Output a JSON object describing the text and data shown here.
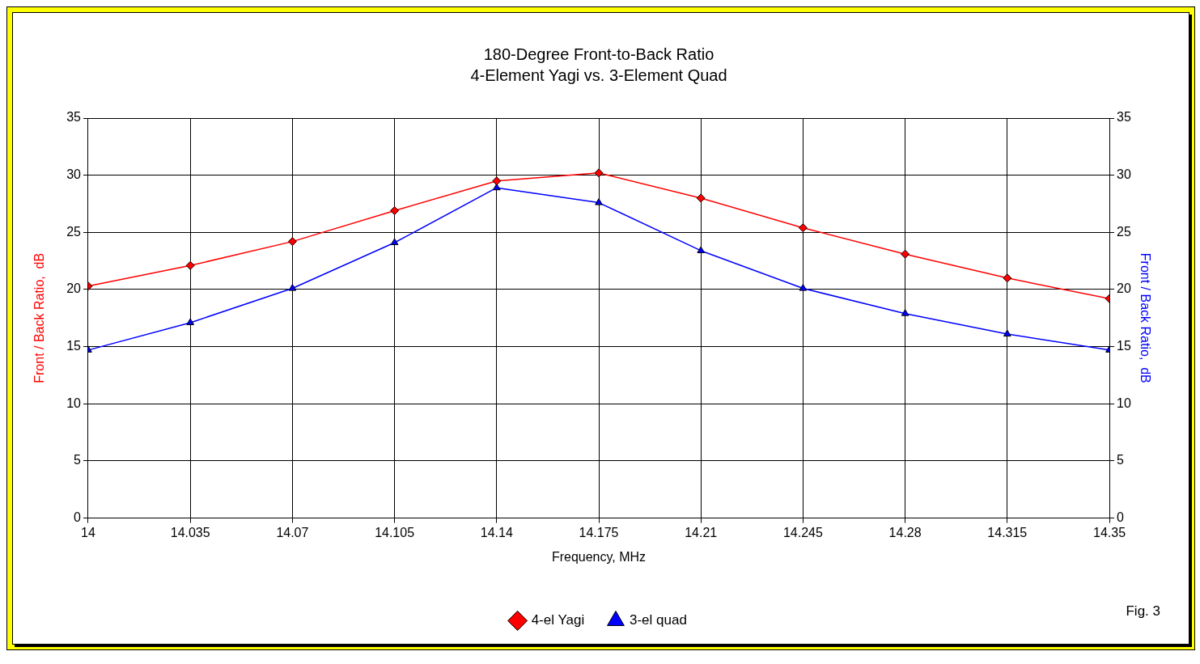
{
  "chart_data": {
    "type": "line",
    "title": "180-Degree Front-to-Back Ratio",
    "subtitle": "4-Element Yagi vs. 3-Element Quad",
    "xlabel": "Frequency, MHz",
    "ylabel": "Front / Back Ratio,  dB",
    "y2label": "Front / Back Ratio,  dB",
    "x": [
      14,
      14.035,
      14.07,
      14.105,
      14.14,
      14.175,
      14.21,
      14.245,
      14.28,
      14.315,
      14.35
    ],
    "series": [
      {
        "name": "4-el Yagi",
        "color": "#ff0000",
        "marker": "diamond",
        "values": [
          20.3,
          22.1,
          24.2,
          26.9,
          29.5,
          30.2,
          28.0,
          25.4,
          23.1,
          21.0,
          19.2
        ]
      },
      {
        "name": "3-el quad",
        "color": "#0000ff",
        "marker": "triangle",
        "values": [
          14.7,
          17.1,
          20.1,
          24.1,
          28.9,
          27.6,
          23.4,
          20.1,
          17.9,
          16.1,
          14.7
        ]
      }
    ],
    "xlim": [
      14,
      14.35
    ],
    "xticks": [
      14,
      14.035,
      14.07,
      14.105,
      14.14,
      14.175,
      14.21,
      14.245,
      14.28,
      14.315,
      14.35
    ],
    "ylim": [
      0,
      35
    ],
    "yticks": [
      0,
      5,
      10,
      15,
      20,
      25,
      30,
      35
    ],
    "y2lim": [
      0,
      35
    ],
    "y2ticks": [
      0,
      5,
      10,
      15,
      20,
      25,
      30,
      35
    ],
    "grid": true,
    "legend": "bottom",
    "line_style": "solid",
    "annotations": [
      "Fig. 3"
    ]
  }
}
